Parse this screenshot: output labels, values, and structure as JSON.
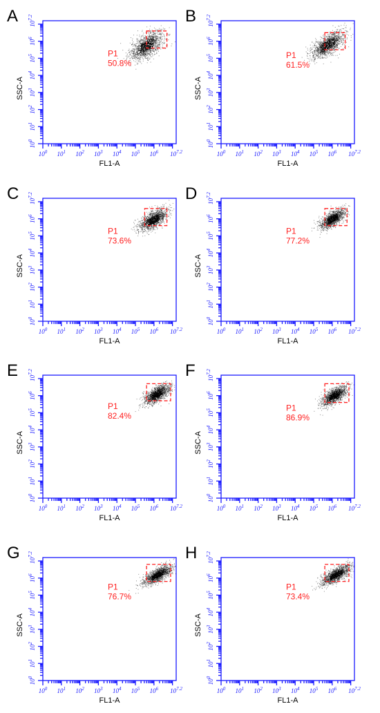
{
  "chart_data": [
    {
      "type": "scatter",
      "panel_label": "A",
      "xlabel": "FL1-A",
      "ylabel": "SSC-A",
      "xlim": [
        0,
        7.2
      ],
      "ylim": [
        0,
        7.2
      ],
      "x_ticks": [
        "10^0",
        "10^1",
        "10^2",
        "10^3",
        "10^4",
        "10^5",
        "10^6",
        "10^7.2"
      ],
      "y_ticks": [
        "10^0",
        "10^1",
        "10^2",
        "10^3",
        "10^4",
        "10^5",
        "10^6",
        "10^7.2"
      ],
      "scale": "log10",
      "gate": {
        "name": "P1",
        "percent": "50.8%",
        "x_range": [
          5.6,
          6.7
        ],
        "y_range": [
          5.6,
          6.6
        ]
      },
      "population": {
        "center_x": 5.6,
        "center_y": 5.75,
        "spread": [
          0.45,
          0.35
        ]
      },
      "colors": {
        "axes": "#1a1aff",
        "gate": "#ff1f1f",
        "events": "#000000"
      }
    },
    {
      "type": "scatter",
      "panel_label": "B",
      "xlabel": "FL1-A",
      "ylabel": "SSC-A",
      "xlim": [
        0,
        7.2
      ],
      "ylim": [
        0,
        7.2
      ],
      "x_ticks": [
        "10^0",
        "10^1",
        "10^2",
        "10^3",
        "10^4",
        "10^5",
        "10^6",
        "10^7.2"
      ],
      "y_ticks": [
        "10^0",
        "10^1",
        "10^2",
        "10^3",
        "10^4",
        "10^5",
        "10^6",
        "10^7.2"
      ],
      "scale": "log10",
      "gate": {
        "name": "P1",
        "percent": "61.5%",
        "x_range": [
          5.6,
          6.7
        ],
        "y_range": [
          5.5,
          6.5
        ]
      },
      "population": {
        "center_x": 5.75,
        "center_y": 5.8,
        "spread": [
          0.45,
          0.3
        ]
      },
      "colors": {
        "axes": "#1a1aff",
        "gate": "#ff1f1f",
        "events": "#000000"
      }
    },
    {
      "type": "scatter",
      "panel_label": "C",
      "xlabel": "FL1-A",
      "ylabel": "SSC-A",
      "xlim": [
        0,
        7.2
      ],
      "ylim": [
        0,
        7.2
      ],
      "x_ticks": [
        "10^0",
        "10^1",
        "10^2",
        "10^3",
        "10^4",
        "10^5",
        "10^6",
        "10^7.2"
      ],
      "y_ticks": [
        "10^0",
        "10^1",
        "10^2",
        "10^3",
        "10^4",
        "10^5",
        "10^6",
        "10^7.2"
      ],
      "scale": "log10",
      "gate": {
        "name": "P1",
        "percent": "73.6%",
        "x_range": [
          5.5,
          6.7
        ],
        "y_range": [
          5.6,
          6.6
        ]
      },
      "population": {
        "center_x": 5.95,
        "center_y": 5.95,
        "spread": [
          0.38,
          0.25
        ]
      },
      "colors": {
        "axes": "#1a1aff",
        "gate": "#ff1f1f",
        "events": "#000000"
      }
    },
    {
      "type": "scatter",
      "panel_label": "D",
      "xlabel": "FL1-A",
      "ylabel": "SSC-A",
      "xlim": [
        0,
        7.2
      ],
      "ylim": [
        0,
        7.2
      ],
      "x_ticks": [
        "10^0",
        "10^1",
        "10^2",
        "10^3",
        "10^4",
        "10^5",
        "10^6",
        "10^7.2"
      ],
      "y_ticks": [
        "10^0",
        "10^1",
        "10^2",
        "10^3",
        "10^4",
        "10^5",
        "10^6",
        "10^7.2"
      ],
      "scale": "log10",
      "gate": {
        "name": "P1",
        "percent": "77.2%",
        "x_range": [
          5.6,
          6.8
        ],
        "y_range": [
          5.6,
          6.6
        ]
      },
      "population": {
        "center_x": 6.0,
        "center_y": 6.0,
        "spread": [
          0.35,
          0.22
        ]
      },
      "colors": {
        "axes": "#1a1aff",
        "gate": "#ff1f1f",
        "events": "#000000"
      }
    },
    {
      "type": "scatter",
      "panel_label": "E",
      "xlabel": "FL1-A",
      "ylabel": "SSC-A",
      "xlim": [
        0,
        7.2
      ],
      "ylim": [
        0,
        7.2
      ],
      "x_ticks": [
        "10^0",
        "10^1",
        "10^2",
        "10^3",
        "10^4",
        "10^5",
        "10^6",
        "10^7.2"
      ],
      "y_ticks": [
        "10^0",
        "10^1",
        "10^2",
        "10^3",
        "10^4",
        "10^5",
        "10^6",
        "10^7.2"
      ],
      "scale": "log10",
      "gate": {
        "name": "P1",
        "percent": "82.4%",
        "x_range": [
          5.6,
          6.9
        ],
        "y_range": [
          5.7,
          6.7
        ]
      },
      "population": {
        "center_x": 6.15,
        "center_y": 6.1,
        "spread": [
          0.35,
          0.22
        ]
      },
      "colors": {
        "axes": "#1a1aff",
        "gate": "#ff1f1f",
        "events": "#000000"
      }
    },
    {
      "type": "scatter",
      "panel_label": "F",
      "xlabel": "FL1-A",
      "ylabel": "SSC-A",
      "xlim": [
        0,
        7.2
      ],
      "ylim": [
        0,
        7.2
      ],
      "x_ticks": [
        "10^0",
        "10^1",
        "10^2",
        "10^3",
        "10^4",
        "10^5",
        "10^6",
        "10^7.2"
      ],
      "y_ticks": [
        "10^0",
        "10^1",
        "10^2",
        "10^3",
        "10^4",
        "10^5",
        "10^6",
        "10^7.2"
      ],
      "scale": "log10",
      "gate": {
        "name": "P1",
        "percent": "86.9%",
        "x_range": [
          5.6,
          6.9
        ],
        "y_range": [
          5.6,
          6.7
        ]
      },
      "population": {
        "center_x": 6.1,
        "center_y": 6.0,
        "spread": [
          0.35,
          0.22
        ]
      },
      "colors": {
        "axes": "#1a1aff",
        "gate": "#ff1f1f",
        "events": "#000000"
      }
    },
    {
      "type": "scatter",
      "panel_label": "G",
      "xlabel": "FL1-A",
      "ylabel": "SSC-A",
      "xlim": [
        0,
        7.2
      ],
      "ylim": [
        0,
        7.2
      ],
      "x_ticks": [
        "10^0",
        "10^1",
        "10^2",
        "10^3",
        "10^4",
        "10^5",
        "10^6",
        "10^7.2"
      ],
      "y_ticks": [
        "10^0",
        "10^1",
        "10^2",
        "10^3",
        "10^4",
        "10^5",
        "10^6",
        "10^7.2"
      ],
      "scale": "log10",
      "gate": {
        "name": "P1",
        "percent": "76.7%",
        "x_range": [
          5.6,
          6.9
        ],
        "y_range": [
          5.8,
          6.8
        ]
      },
      "population": {
        "center_x": 6.2,
        "center_y": 6.2,
        "spread": [
          0.4,
          0.2
        ]
      },
      "colors": {
        "axes": "#1a1aff",
        "gate": "#ff1f1f",
        "events": "#000000"
      }
    },
    {
      "type": "scatter",
      "panel_label": "H",
      "xlabel": "FL1-A",
      "ylabel": "SSC-A",
      "xlim": [
        0,
        7.2
      ],
      "ylim": [
        0,
        7.2
      ],
      "x_ticks": [
        "10^0",
        "10^1",
        "10^2",
        "10^3",
        "10^4",
        "10^5",
        "10^6",
        "10^7.2"
      ],
      "y_ticks": [
        "10^0",
        "10^1",
        "10^2",
        "10^3",
        "10^4",
        "10^5",
        "10^6",
        "10^7.2"
      ],
      "scale": "log10",
      "gate": {
        "name": "P1",
        "percent": "73.4%",
        "x_range": [
          5.6,
          6.9
        ],
        "y_range": [
          5.8,
          6.8
        ]
      },
      "population": {
        "center_x": 6.2,
        "center_y": 6.2,
        "spread": [
          0.4,
          0.2
        ]
      },
      "colors": {
        "axes": "#1a1aff",
        "gate": "#ff1f1f",
        "events": "#000000"
      }
    }
  ]
}
